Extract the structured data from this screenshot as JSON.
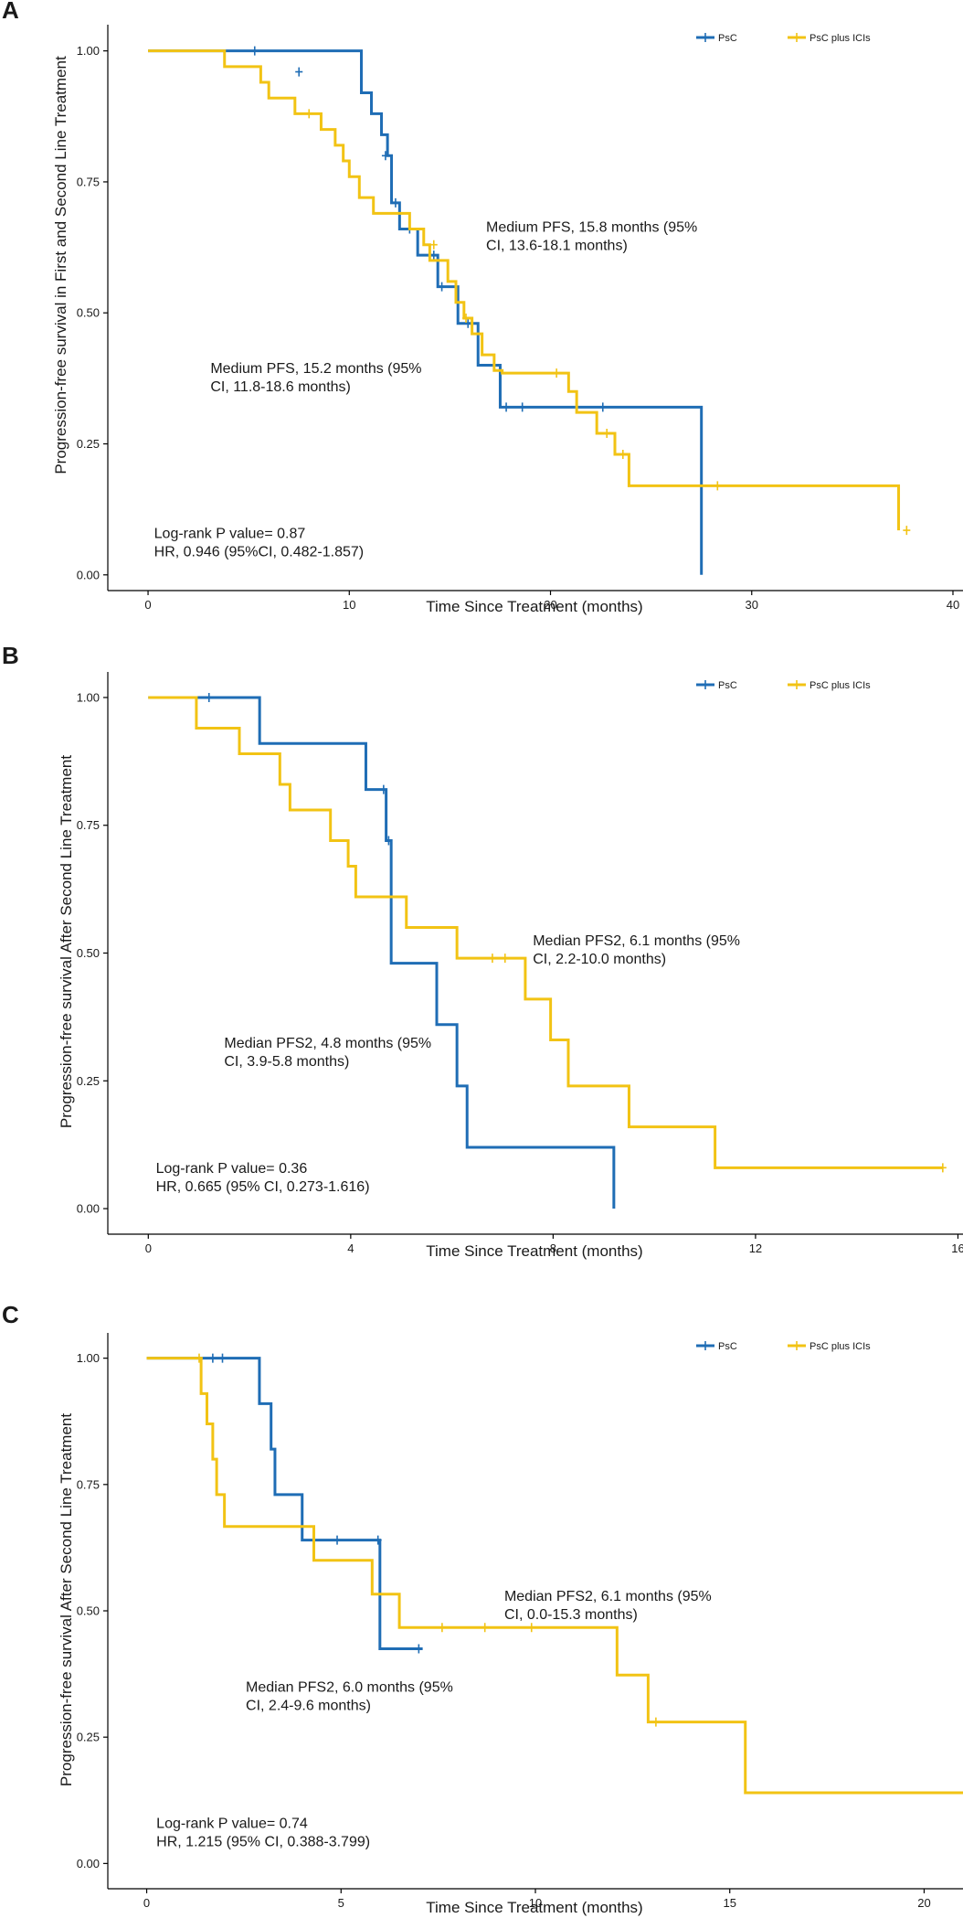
{
  "colors": {
    "psc": "#1F6DB5",
    "ici": "#F2C314"
  },
  "chart_data": [
    {
      "panel": "A",
      "type": "line",
      "step": true,
      "xlabel": "Time Since Treatment (months)",
      "ylabel": "Progression-free survival in First and Second Line Treatment",
      "xlim": [
        -2,
        40.5
      ],
      "ylim": [
        -0.03,
        1.05
      ],
      "xticks": [
        0,
        10,
        20,
        30,
        40
      ],
      "yticks": [
        0.0,
        0.25,
        0.5,
        0.75,
        1.0
      ],
      "ytick_labels": [
        "0.00",
        "0.25",
        "0.50",
        "0.75",
        "1.00"
      ],
      "legend": {
        "position": "top-right",
        "entries": [
          "PsC",
          "PsC plus ICIs"
        ]
      },
      "series": [
        {
          "name": "PsC",
          "color_key": "psc",
          "x": [
            0,
            9,
            10.6,
            11.1,
            11.6,
            11.9,
            12.1,
            12.5,
            13.4,
            14.4,
            15.4,
            16.4,
            17.5,
            27.5,
            27.5
          ],
          "y": [
            1.0,
            1.0,
            0.92,
            0.88,
            0.84,
            0.8,
            0.71,
            0.66,
            0.61,
            0.55,
            0.48,
            0.4,
            0.32,
            0.32,
            0.0
          ],
          "censor_x": [
            5.3,
            7.5,
            11.8,
            12.3,
            13.0,
            14.2,
            14.6,
            15.9,
            17.8,
            18.6,
            22.6
          ],
          "censor_y": [
            1.0,
            0.96,
            0.8,
            0.71,
            0.66,
            0.61,
            0.55,
            0.48,
            0.32,
            0.32,
            0.32
          ]
        },
        {
          "name": "PsC plus ICIs",
          "color_key": "ici",
          "x": [
            0,
            3.8,
            5.6,
            6.0,
            7.3,
            8.6,
            9.3,
            9.7,
            10.0,
            10.5,
            11.2,
            13.0,
            13.7,
            14.0,
            14.9,
            15.3,
            15.7,
            16.1,
            16.6,
            17.2,
            17.6,
            20.9,
            21.3,
            22.3,
            23.2,
            23.9,
            37.3,
            37.3
          ],
          "y": [
            1.0,
            0.97,
            0.94,
            0.91,
            0.88,
            0.85,
            0.82,
            0.79,
            0.76,
            0.72,
            0.69,
            0.66,
            0.63,
            0.6,
            0.56,
            0.52,
            0.49,
            0.46,
            0.42,
            0.39,
            0.385,
            0.35,
            0.31,
            0.27,
            0.23,
            0.17,
            0.17,
            0.085
          ],
          "censor_x": [
            8.0,
            14.2,
            15.8,
            20.3,
            22.8,
            23.6,
            28.3,
            37.7
          ],
          "censor_y": [
            0.88,
            0.63,
            0.49,
            0.385,
            0.27,
            0.23,
            0.17,
            0.085
          ]
        }
      ],
      "annotations": [
        {
          "lines": [
            "Medium PFS, 15.8 months (95%",
            "CI, 13.6-18.1 months)"
          ],
          "x": 16.8,
          "y": 0.655
        },
        {
          "lines": [
            "Medium PFS, 15.2 months (95%",
            "CI, 11.8-18.6 months)"
          ],
          "x": 3.1,
          "y": 0.385
        },
        {
          "lines": [
            "Log-rank P value= 0.87",
            "HR, 0.946 (95%CI, 0.482-1.857)"
          ],
          "x": 0.3,
          "y": 0.07
        }
      ]
    },
    {
      "panel": "B",
      "type": "line",
      "step": true,
      "xlabel": "Time Since Treatment (months)",
      "ylabel": "Progression-free survival After Second Line Treatment",
      "xlim": [
        -0.8,
        16.1
      ],
      "ylim": [
        -0.05,
        1.05
      ],
      "xticks": [
        0,
        4,
        8,
        12,
        16
      ],
      "yticks": [
        0.0,
        0.25,
        0.5,
        0.75,
        1.0
      ],
      "ytick_labels": [
        "0.00",
        "0.25",
        "0.50",
        "0.75",
        "1.00"
      ],
      "legend": {
        "position": "top-right",
        "entries": [
          "PsC",
          "PsC plus ICIs"
        ]
      },
      "series": [
        {
          "name": "PsC",
          "color_key": "psc",
          "x": [
            0,
            2.2,
            4.3,
            4.7,
            4.8,
            5.7,
            6.1,
            6.3,
            9.2,
            9.2
          ],
          "y": [
            1.0,
            0.91,
            0.82,
            0.72,
            0.48,
            0.36,
            0.24,
            0.12,
            0.12,
            0.0
          ],
          "censor_x": [
            1.2,
            4.65,
            4.75
          ],
          "censor_y": [
            1.0,
            0.82,
            0.72
          ]
        },
        {
          "name": "PsC plus ICIs",
          "color_key": "ici",
          "x": [
            0,
            0.95,
            1.8,
            2.6,
            2.8,
            3.6,
            3.95,
            4.1,
            5.1,
            6.1,
            7.45,
            7.95,
            8.3,
            9.5,
            11.2,
            15.7
          ],
          "y": [
            1.0,
            0.94,
            0.89,
            0.83,
            0.78,
            0.72,
            0.67,
            0.61,
            0.55,
            0.49,
            0.41,
            0.33,
            0.24,
            0.16,
            0.08,
            0.08
          ],
          "censor_x": [
            6.8,
            7.05,
            15.7
          ],
          "censor_y": [
            0.49,
            0.49,
            0.08
          ]
        }
      ],
      "annotations": [
        {
          "lines": [
            "Median PFS2, 6.1 months (95%",
            "CI, 2.2-10.0 months)"
          ],
          "x": 7.6,
          "y": 0.515
        },
        {
          "lines": [
            "Median PFS2, 4.8 months (95%",
            "CI, 3.9-5.8 months)"
          ],
          "x": 1.5,
          "y": 0.315
        },
        {
          "lines": [
            "Log-rank P value= 0.36",
            "HR, 0.665 (95% CI, 0.273-1.616)"
          ],
          "x": 0.15,
          "y": 0.07
        }
      ]
    },
    {
      "panel": "C",
      "type": "line",
      "step": true,
      "xlabel": "Time Since Treatment (months)",
      "ylabel": "Progression-free survival After Second Line Treatment",
      "xlim": [
        -1,
        21
      ],
      "ylim": [
        -0.05,
        1.05
      ],
      "xticks": [
        0,
        5,
        10,
        15,
        20
      ],
      "yticks": [
        0.0,
        0.25,
        0.5,
        0.75,
        1.0
      ],
      "ytick_labels": [
        "0.00",
        "0.25",
        "0.50",
        "0.75",
        "1.00"
      ],
      "legend": {
        "position": "top-right",
        "entries": [
          "PsC",
          "PsC plus ICIs"
        ]
      },
      "series": [
        {
          "name": "PsC",
          "color_key": "psc",
          "x": [
            0,
            2.9,
            3.2,
            3.3,
            4.0,
            6.0,
            7.1
          ],
          "y": [
            1.0,
            0.91,
            0.82,
            0.73,
            0.64,
            0.425,
            0.425
          ],
          "censor_x": [
            1.7,
            1.95,
            4.9,
            5.95,
            7.0
          ],
          "censor_y": [
            1.0,
            1.0,
            0.64,
            0.64,
            0.425
          ]
        },
        {
          "name": "PsC plus ICIs",
          "color_key": "ici",
          "x": [
            0,
            1.4,
            1.55,
            1.7,
            1.8,
            1.9,
            2.0,
            4.3,
            5.8,
            6.5,
            12.1,
            12.9,
            15.4,
            21
          ],
          "y": [
            1.0,
            0.93,
            0.87,
            0.8,
            0.73,
            0.73,
            0.667,
            0.6,
            0.533,
            0.467,
            0.373,
            0.28,
            0.14,
            0.14
          ],
          "censor_x": [
            1.35,
            7.6,
            8.7,
            9.9,
            13.1
          ],
          "censor_y": [
            1.0,
            0.467,
            0.467,
            0.467,
            0.28
          ]
        }
      ],
      "annotations": [
        {
          "lines": [
            "Median PFS2, 6.1 months (95%",
            "CI, 0.0-15.3 months)"
          ],
          "x": 9.2,
          "y": 0.52
        },
        {
          "lines": [
            "Median PFS2, 6.0 months (95%",
            "CI, 2.4-9.6 months)"
          ],
          "x": 2.55,
          "y": 0.34
        },
        {
          "lines": [
            "Log-rank P value= 0.74",
            "HR, 1.215 (95% CI, 0.388-3.799)"
          ],
          "x": 0.25,
          "y": 0.07
        }
      ]
    }
  ]
}
